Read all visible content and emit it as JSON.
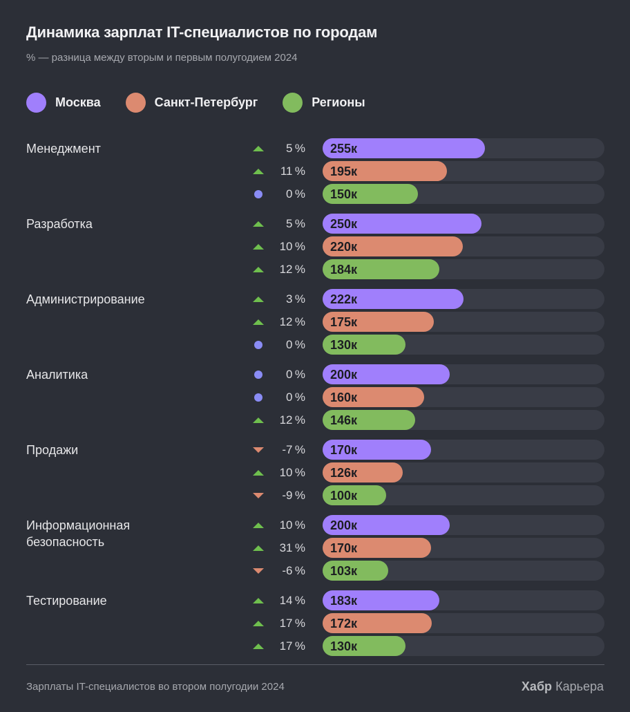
{
  "header": {
    "title": "Динамика зарплат IT-специалистов по городам",
    "subtitle": "% — разница между вторым и первым полугодием 2024"
  },
  "legend": [
    {
      "label": "Москва",
      "color": "#a07ffc"
    },
    {
      "label": "Санкт-Петербург",
      "color": "#dc8a70"
    },
    {
      "label": "Регионы",
      "color": "#82bb5e"
    }
  ],
  "indicator_colors": {
    "up": "#6fbf4e",
    "down": "#dc8a70",
    "flat": "#8a8cf5"
  },
  "chart_data": {
    "type": "bar",
    "orientation": "horizontal",
    "unit": "к",
    "categories": [
      "Менеджмент",
      "Разработка",
      "Администрирование",
      "Аналитика",
      "Продажи",
      "Информационная безопасность",
      "Тестирование"
    ],
    "series": [
      {
        "name": "Москва",
        "color": "#a07ffc",
        "values": [
          255,
          250,
          222,
          200,
          170,
          200,
          183
        ],
        "change_pct": [
          5,
          5,
          3,
          0,
          -7,
          10,
          14
        ]
      },
      {
        "name": "Санкт-Петербург",
        "color": "#dc8a70",
        "values": [
          195,
          220,
          175,
          160,
          126,
          170,
          172
        ],
        "change_pct": [
          11,
          10,
          12,
          0,
          10,
          31,
          17
        ]
      },
      {
        "name": "Регионы",
        "color": "#82bb5e",
        "values": [
          150,
          184,
          130,
          146,
          100,
          103,
          130
        ],
        "change_pct": [
          0,
          12,
          0,
          12,
          -9,
          -6,
          17
        ]
      }
    ],
    "xlim": [
      0,
      443
    ],
    "grid": false,
    "legend_position": "top-left"
  },
  "footer": {
    "caption": "Зарплаты IT-специалистов во втором полугодии 2024",
    "brand_bold": "Хабр",
    "brand_regular": "Карьера"
  }
}
